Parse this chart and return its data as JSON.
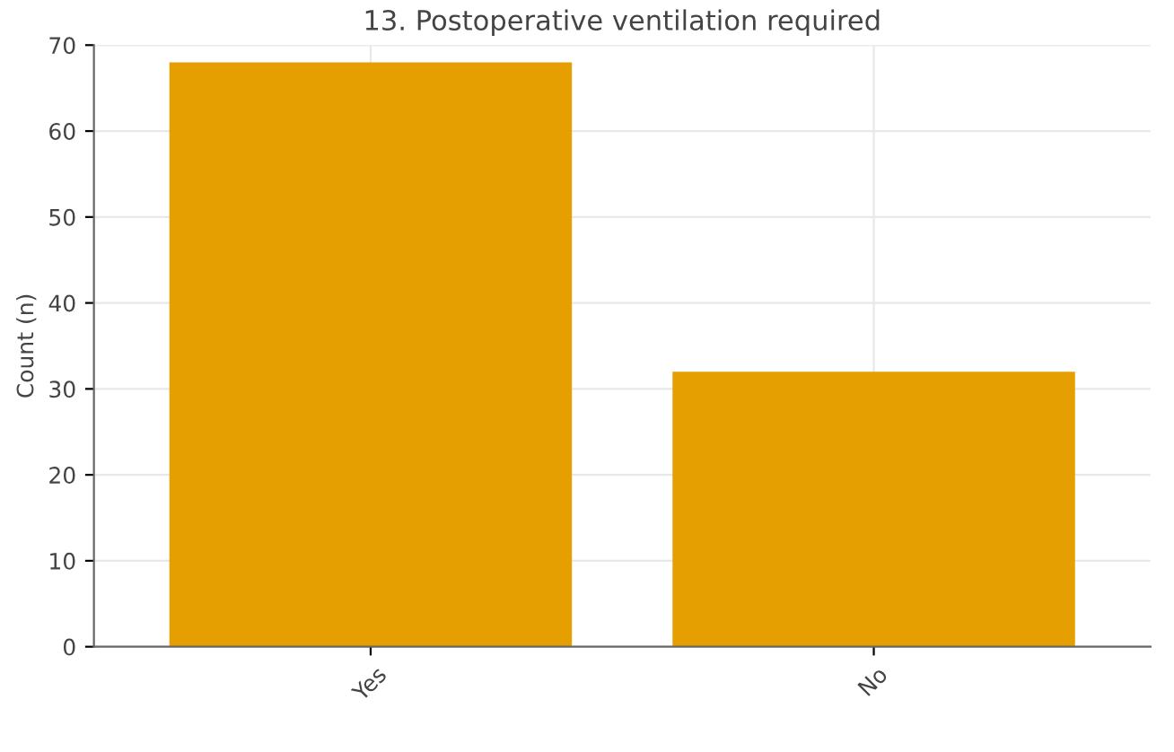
{
  "chart_data": {
    "type": "bar",
    "title": "13. Postoperative ventilation required",
    "ylabel": "Count (n)",
    "categories": [
      "Yes",
      "No"
    ],
    "values": [
      68,
      32
    ],
    "color": "#e69f00",
    "ylim": [
      0,
      70
    ],
    "yticks": [
      0,
      10,
      20,
      30,
      40,
      50,
      60,
      70
    ],
    "grid": true
  }
}
